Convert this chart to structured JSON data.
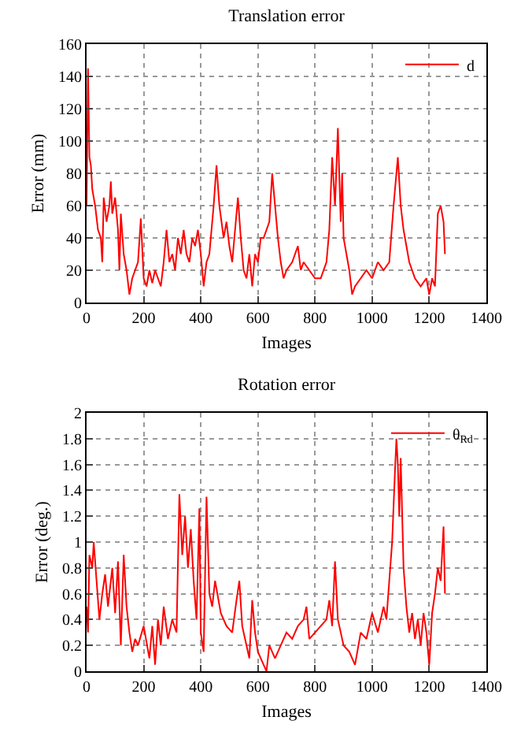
{
  "chart_data": [
    {
      "type": "line",
      "title": "Translation error",
      "xlabel": "Images",
      "ylabel": "Error (mm)",
      "xlim": [
        0,
        1400
      ],
      "xticks": [
        0,
        200,
        400,
        600,
        800,
        1000,
        1200,
        1400
      ],
      "ylim": [
        0,
        160
      ],
      "yticks": [
        0,
        20,
        40,
        60,
        80,
        100,
        120,
        140,
        160
      ],
      "grid": true,
      "legend": "top right",
      "line_style": "solid",
      "marker": "none",
      "x": [
        0,
        5,
        10,
        15,
        20,
        30,
        40,
        50,
        55,
        60,
        70,
        80,
        85,
        90,
        100,
        110,
        115,
        120,
        130,
        140,
        150,
        160,
        170,
        180,
        190,
        200,
        210,
        220,
        230,
        240,
        250,
        260,
        270,
        280,
        290,
        300,
        310,
        320,
        330,
        340,
        350,
        360,
        370,
        380,
        390,
        400,
        410,
        420,
        430,
        445,
        455,
        465,
        480,
        490,
        500,
        510,
        520,
        530,
        540,
        550,
        560,
        570,
        580,
        590,
        600,
        610,
        620,
        640,
        650,
        660,
        670,
        680,
        690,
        700,
        720,
        740,
        750,
        760,
        780,
        800,
        820,
        840,
        850,
        860,
        870,
        880,
        890,
        895,
        900,
        910,
        920,
        930,
        940,
        960,
        980,
        1000,
        1020,
        1040,
        1060,
        1075,
        1085,
        1090,
        1100,
        1110,
        1130,
        1150,
        1170,
        1190,
        1200,
        1210,
        1220,
        1230,
        1240,
        1250,
        1255
      ],
      "series": [
        {
          "name": "d",
          "color": "#ff0000",
          "values": [
            60,
            145,
            90,
            85,
            70,
            60,
            45,
            40,
            25,
            65,
            50,
            60,
            75,
            55,
            65,
            45,
            20,
            55,
            30,
            20,
            5,
            15,
            20,
            25,
            52,
            15,
            10,
            20,
            12,
            20,
            15,
            10,
            25,
            45,
            25,
            30,
            20,
            40,
            30,
            45,
            30,
            25,
            40,
            35,
            45,
            30,
            10,
            25,
            30,
            60,
            85,
            60,
            40,
            50,
            35,
            25,
            45,
            65,
            40,
            20,
            15,
            30,
            10,
            30,
            25,
            40,
            40,
            50,
            80,
            60,
            40,
            25,
            15,
            20,
            25,
            35,
            20,
            25,
            20,
            15,
            15,
            25,
            45,
            90,
            60,
            108,
            50,
            80,
            40,
            30,
            20,
            5,
            10,
            15,
            20,
            15,
            25,
            20,
            25,
            60,
            80,
            90,
            60,
            45,
            25,
            15,
            10,
            15,
            5,
            15,
            10,
            55,
            60,
            50,
            30
          ]
        }
      ]
    },
    {
      "type": "line",
      "title": "Rotation error",
      "xlabel": "Images",
      "ylabel": "Error (deg.)",
      "xlim": [
        0,
        1400
      ],
      "xticks": [
        0,
        200,
        400,
        600,
        800,
        1000,
        1200,
        1400
      ],
      "ylim": [
        0,
        2
      ],
      "yticks": [
        0,
        0.2,
        0.4,
        0.6,
        0.8,
        1,
        1.2,
        1.4,
        1.6,
        1.8,
        2
      ],
      "grid": true,
      "legend": "top right",
      "line_style": "solid",
      "marker": "none",
      "x": [
        0,
        5,
        10,
        20,
        25,
        35,
        45,
        55,
        65,
        75,
        90,
        100,
        110,
        120,
        130,
        140,
        150,
        160,
        170,
        180,
        200,
        220,
        230,
        240,
        250,
        260,
        270,
        285,
        300,
        315,
        325,
        335,
        345,
        355,
        365,
        375,
        385,
        395,
        400,
        410,
        420,
        430,
        440,
        450,
        470,
        490,
        510,
        525,
        535,
        545,
        560,
        570,
        580,
        590,
        600,
        620,
        630,
        640,
        660,
        680,
        700,
        720,
        740,
        760,
        770,
        780,
        800,
        820,
        840,
        850,
        860,
        870,
        880,
        900,
        920,
        940,
        960,
        980,
        1000,
        1020,
        1040,
        1050,
        1060,
        1070,
        1080,
        1085,
        1090,
        1095,
        1100,
        1110,
        1120,
        1130,
        1140,
        1150,
        1160,
        1170,
        1180,
        1190,
        1200,
        1210,
        1220,
        1230,
        1240,
        1250,
        1255
      ],
      "series": [
        {
          "name": "θ$_{Rd}$",
          "color": "#ff0000",
          "values": [
            0.5,
            0.3,
            0.9,
            0.8,
            1.0,
            0.7,
            0.4,
            0.6,
            0.75,
            0.5,
            0.8,
            0.45,
            0.85,
            0.2,
            0.9,
            0.5,
            0.3,
            0.15,
            0.25,
            0.2,
            0.35,
            0.1,
            0.35,
            0.05,
            0.4,
            0.2,
            0.5,
            0.25,
            0.4,
            0.3,
            1.37,
            0.9,
            1.2,
            0.8,
            1.1,
            0.7,
            0.4,
            1.26,
            0.3,
            0.15,
            1.35,
            0.6,
            0.5,
            0.7,
            0.45,
            0.35,
            0.3,
            0.55,
            0.7,
            0.35,
            0.2,
            0.1,
            0.55,
            0.3,
            0.15,
            0.05,
            0.0,
            0.2,
            0.1,
            0.2,
            0.3,
            0.25,
            0.35,
            0.4,
            0.5,
            0.25,
            0.3,
            0.35,
            0.4,
            0.55,
            0.35,
            0.85,
            0.4,
            0.2,
            0.15,
            0.05,
            0.3,
            0.25,
            0.45,
            0.3,
            0.5,
            0.4,
            0.7,
            1.0,
            1.55,
            1.8,
            1.6,
            1.2,
            1.65,
            0.8,
            0.5,
            0.3,
            0.45,
            0.25,
            0.4,
            0.2,
            0.45,
            0.3,
            0.05,
            0.45,
            0.6,
            0.8,
            0.7,
            1.12,
            0.6
          ]
        }
      ]
    }
  ]
}
